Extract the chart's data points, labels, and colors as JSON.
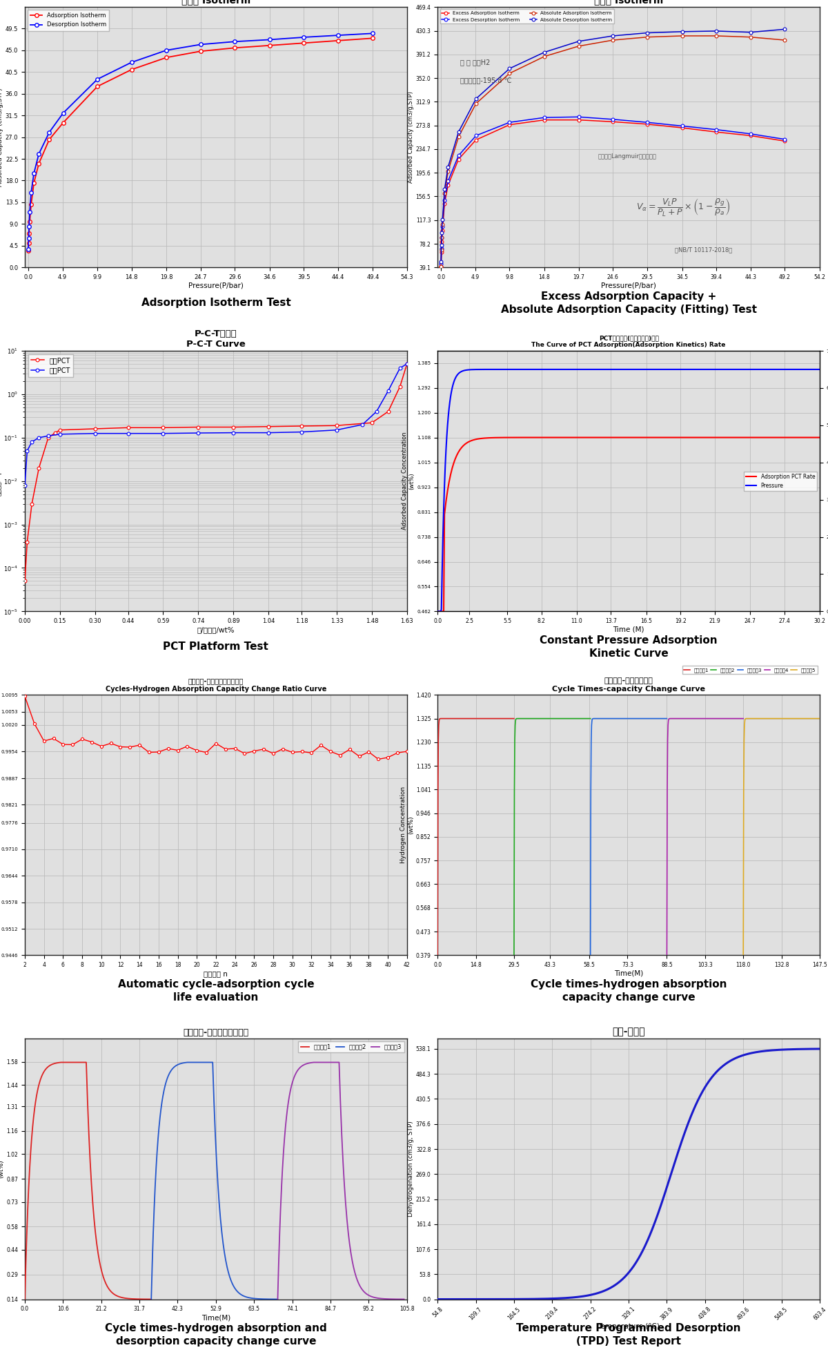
{
  "background": "#ffffff",
  "panel_border": "#aaaaaa",
  "grid_color": "#cccccc",
  "chart_bg": "#e8e8e8",
  "titles": [
    "Adsorption Isotherm Test",
    "Excess Adsorption Capacity +\nAbsolute Adsorption Capacity (Fitting) Test",
    "PCT Platform Test",
    "Constant Pressure Adsorption\nKinetic Curve",
    "Automatic cycle-adsorption cycle\nlife evaluation",
    "Cycle times-hydrogen absorption\ncapacity change curve",
    "Cycle times-hydrogen absorption and\ndesorption capacity change curve",
    "Temperature Programmed Desorption\n(TPD) Test Report"
  ],
  "chart_title_1": "等温线 Isotherm",
  "chart_title_2": "等温线 Isotherm",
  "chart_title_3": "P-C-T曲线图\nP-C-T Curve",
  "chart_title_4": "PCT吸附速率(吸附动力学)曲线\nThe Curve of PCT Adsorption(Adsorption Kinetics) Rate",
  "chart_title_5": "循环次数-氢气容量变化比曲线\nCycles-Hydrogen Absorption Capacity Change Ratio Curve",
  "chart_title_6": "循环次数-容量变化曲线\nCycle Times-capacity Change Curve",
  "chart_title_7": "循环次数-吸氢容量变化曲图",
  "chart_title_8": "温度-脱氢量",
  "ads_label": "吸附PCT",
  "des_label": "脱附PCT",
  "cycle_labels": [
    "循环次数1",
    "循环次数2",
    "循环次数3",
    "循环次数4",
    "循环次数5"
  ],
  "cycle3_labels": [
    "循环次数1",
    "循环次数2",
    "循环次数3"
  ]
}
